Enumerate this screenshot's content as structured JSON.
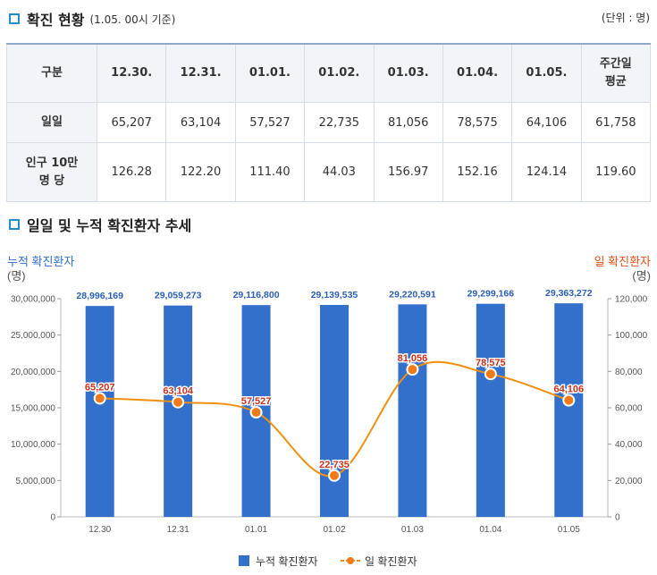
{
  "section1": {
    "title": "확진 현황",
    "subtitle": "(1.05. 00시 기준)",
    "unit": "(단위 : 명)"
  },
  "table": {
    "headers": [
      "구분",
      "12.30.",
      "12.31.",
      "01.01.",
      "01.02.",
      "01.03.",
      "01.04.",
      "01.05.",
      "주간일\n평균"
    ],
    "rows": [
      {
        "label": "일일",
        "values": [
          "65,207",
          "63,104",
          "57,527",
          "22,735",
          "81,056",
          "78,575",
          "64,106",
          "61,758"
        ]
      },
      {
        "label": "인구 10만\n명 당",
        "values": [
          "126.28",
          "122.20",
          "111.40",
          "44.03",
          "156.97",
          "152.16",
          "124.14",
          "119.60"
        ]
      }
    ]
  },
  "section2": {
    "title": "일일 및 누적 확진환자 추세"
  },
  "chart_data": {
    "type": "bar",
    "categories": [
      "12.30",
      "12.31",
      "01.01",
      "01.02",
      "01.03",
      "01.04",
      "01.05"
    ],
    "series": [
      {
        "name": "누적 확진환자",
        "type": "bar",
        "axis": "left",
        "color": "#3270cc",
        "values": [
          28996169,
          29059273,
          29116800,
          29139535,
          29220591,
          29299166,
          29363272
        ],
        "labels": [
          "28,996,169",
          "29,059,273",
          "29,116,800",
          "29,139,535",
          "29,220,591",
          "29,299,166",
          "29,363,272"
        ]
      },
      {
        "name": "일 확진환자",
        "type": "line",
        "axis": "right",
        "color": "#f0900f",
        "values": [
          65207,
          63104,
          57527,
          22735,
          81056,
          78575,
          64106
        ],
        "labels": [
          "65,207",
          "63,104",
          "57,527",
          "22,735",
          "81,056",
          "78,575",
          "64,106"
        ]
      }
    ],
    "left_axis": {
      "label1": "누적 확진환자",
      "label2": "(명)",
      "ylim": [
        0,
        30000000
      ],
      "ticks": [
        0,
        5000000,
        10000000,
        15000000,
        20000000,
        25000000,
        30000000
      ],
      "tick_labels": [
        "0",
        "5,000,000",
        "10,000,000",
        "15,000,000",
        "20,000,000",
        "25,000,000",
        "30,000,000"
      ]
    },
    "right_axis": {
      "label1": "일 확진환자",
      "label2": "(명)",
      "ylim": [
        0,
        120000
      ],
      "ticks": [
        0,
        20000,
        40000,
        60000,
        80000,
        100000,
        120000
      ],
      "tick_labels": [
        "0",
        "20,000",
        "40,000",
        "60,000",
        "80,000",
        "100,000",
        "120,000"
      ]
    },
    "legend": {
      "position": "bottom"
    },
    "grid": false
  }
}
